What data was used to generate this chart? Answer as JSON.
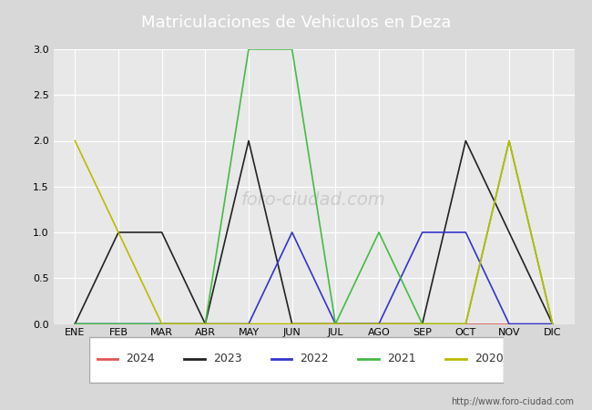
{
  "title": "Matriculaciones de Vehiculos en Deza",
  "title_bg_color": "#5b9bd5",
  "title_text_color": "#ffffff",
  "months": [
    "ENE",
    "FEB",
    "MAR",
    "ABR",
    "MAY",
    "JUN",
    "JUL",
    "AGO",
    "SEP",
    "OCT",
    "NOV",
    "DIC"
  ],
  "series": [
    {
      "label": "2024",
      "color": "#e05555",
      "data": [
        0,
        0,
        0,
        0,
        0,
        0,
        0,
        0,
        0,
        0,
        0,
        0
      ]
    },
    {
      "label": "2023",
      "color": "#222222",
      "data": [
        0,
        1,
        1,
        0,
        2,
        0,
        0,
        0,
        0,
        2,
        1,
        0
      ]
    },
    {
      "label": "2022",
      "color": "#3333cc",
      "data": [
        0,
        0,
        0,
        0,
        0,
        1,
        0,
        0,
        1,
        1,
        0,
        0
      ]
    },
    {
      "label": "2021",
      "color": "#44bb44",
      "data": [
        0,
        0,
        0,
        0,
        3,
        3,
        0,
        1,
        0,
        0,
        2,
        0
      ]
    },
    {
      "label": "2020",
      "color": "#bbbb00",
      "data": [
        2,
        1,
        0,
        0,
        0,
        0,
        0,
        0,
        0,
        0,
        2,
        0
      ]
    }
  ],
  "ylim": [
    0,
    3.0
  ],
  "yticks": [
    0.0,
    0.5,
    1.0,
    1.5,
    2.0,
    2.5,
    3.0
  ],
  "fig_bg_color": "#d8d8d8",
  "plot_bg_color": "#e8e8e8",
  "grid_color": "#ffffff",
  "footer_text": "http://www.foro-ciudad.com",
  "watermark": "foro-ciudad.com",
  "title_fontsize": 13,
  "tick_fontsize": 8,
  "legend_fontsize": 9
}
